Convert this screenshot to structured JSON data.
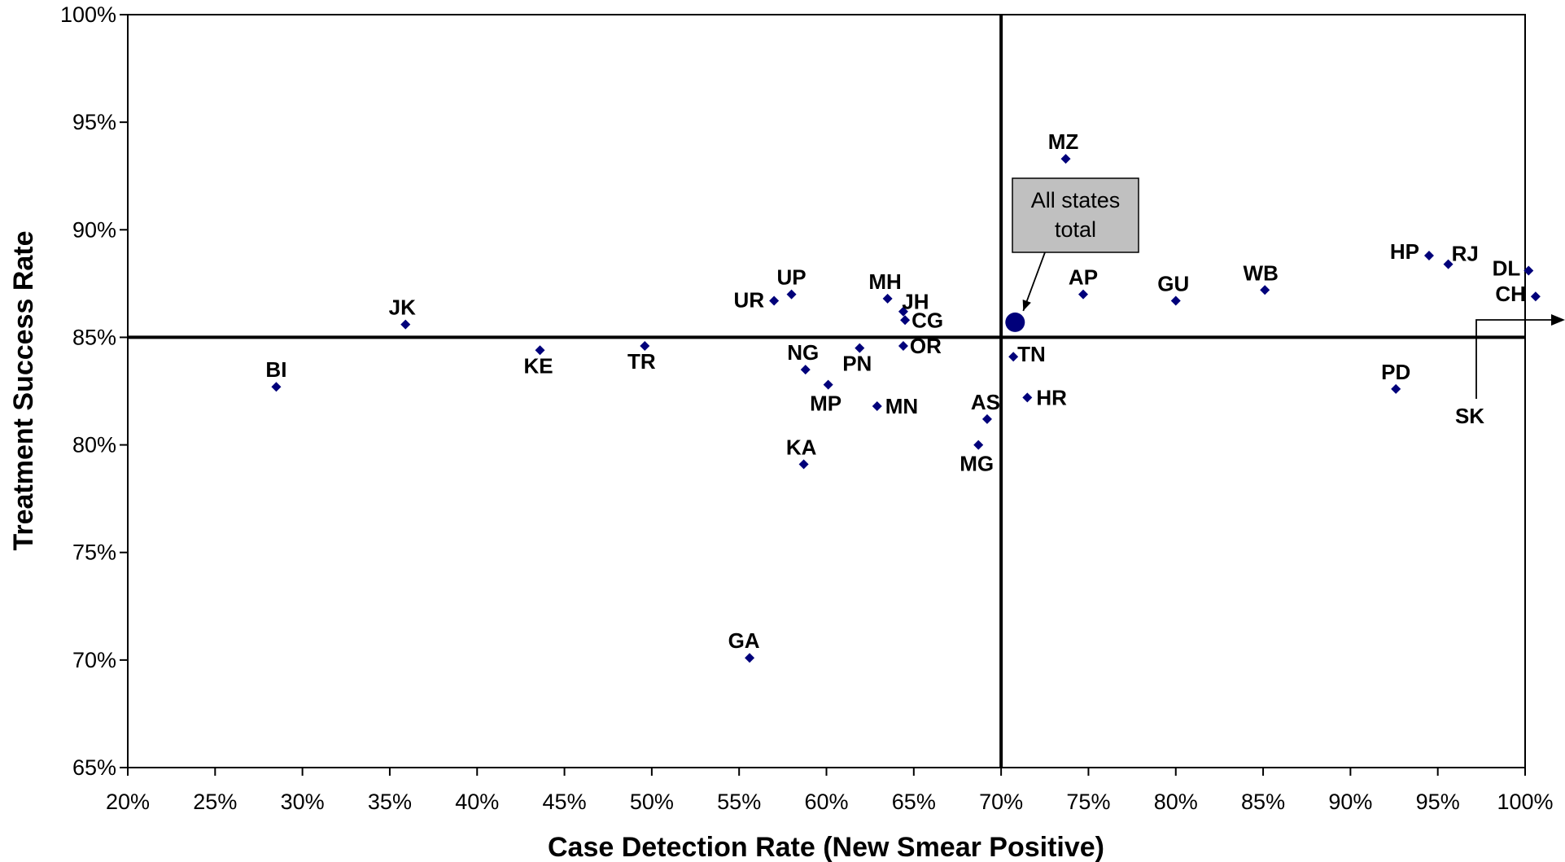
{
  "chart_data": {
    "type": "scatter",
    "xlabel": "Case Detection Rate (New Smear Positive)",
    "ylabel": "Treatment Success Rate",
    "xlim": [
      20,
      100
    ],
    "ylim": [
      65,
      100
    ],
    "x_ticks": [
      "20%",
      "25%",
      "30%",
      "35%",
      "40%",
      "45%",
      "50%",
      "55%",
      "60%",
      "65%",
      "70%",
      "75%",
      "80%",
      "85%",
      "90%",
      "95%",
      "100%"
    ],
    "y_ticks": [
      "65%",
      "70%",
      "75%",
      "80%",
      "85%",
      "90%",
      "95%",
      "100%"
    ],
    "reference_lines": {
      "x": 70,
      "y": 85
    },
    "marker_color": "#00007a",
    "points": [
      {
        "label": "BI",
        "x": 28.5,
        "y": 82.7
      },
      {
        "label": "JK",
        "x": 35.9,
        "y": 85.6
      },
      {
        "label": "KE",
        "x": 43.6,
        "y": 84.4
      },
      {
        "label": "TR",
        "x": 49.6,
        "y": 84.6
      },
      {
        "label": "GA",
        "x": 55.6,
        "y": 70.1
      },
      {
        "label": "UR",
        "x": 57.0,
        "y": 86.7
      },
      {
        "label": "UP",
        "x": 58.0,
        "y": 87.0
      },
      {
        "label": "KA",
        "x": 58.7,
        "y": 79.1
      },
      {
        "label": "NG",
        "x": 58.8,
        "y": 83.5
      },
      {
        "label": "MP",
        "x": 60.1,
        "y": 82.8
      },
      {
        "label": "PN",
        "x": 61.9,
        "y": 84.5
      },
      {
        "label": "MN",
        "x": 62.9,
        "y": 81.8
      },
      {
        "label": "MH",
        "x": 63.5,
        "y": 86.8
      },
      {
        "label": "JH",
        "x": 64.4,
        "y": 86.2
      },
      {
        "label": "CG",
        "x": 64.5,
        "y": 85.8
      },
      {
        "label": "OR",
        "x": 64.4,
        "y": 84.6
      },
      {
        "label": "MG",
        "x": 68.7,
        "y": 80.0
      },
      {
        "label": "AS",
        "x": 69.2,
        "y": 81.2
      },
      {
        "label": "TN",
        "x": 70.7,
        "y": 84.1
      },
      {
        "label": "HR",
        "x": 71.5,
        "y": 82.2
      },
      {
        "label": "MZ",
        "x": 73.7,
        "y": 93.3
      },
      {
        "label": "AP",
        "x": 74.7,
        "y": 87.0
      },
      {
        "label": "GU",
        "x": 80.0,
        "y": 86.7
      },
      {
        "label": "WB",
        "x": 85.1,
        "y": 87.2
      },
      {
        "label": "PD",
        "x": 92.6,
        "y": 82.6
      },
      {
        "label": "HP",
        "x": 94.5,
        "y": 88.8
      },
      {
        "label": "RJ",
        "x": 95.6,
        "y": 88.4
      },
      {
        "label": "DL",
        "x": 100.2,
        "y": 88.1
      },
      {
        "label": "CH",
        "x": 100.6,
        "y": 86.9
      }
    ],
    "total": {
      "x": 70.8,
      "y": 85.7
    },
    "callout": {
      "line1": "All states",
      "line2": "total",
      "fill": "#c0c0c0"
    },
    "offscale": {
      "label": "SK"
    }
  }
}
